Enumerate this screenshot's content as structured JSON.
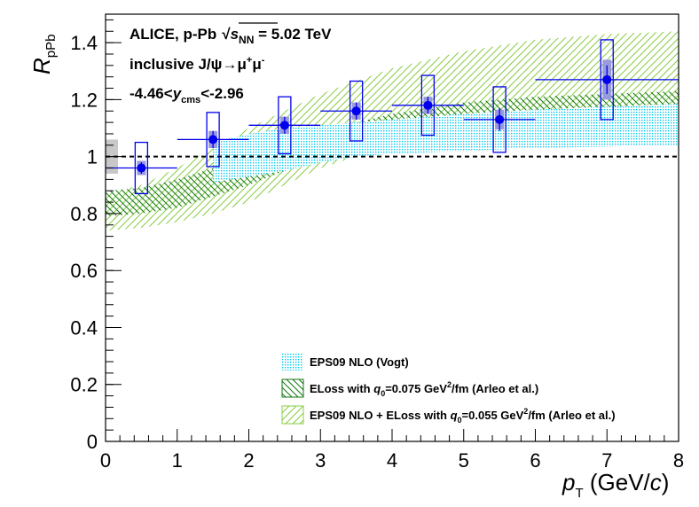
{
  "chart_data": {
    "type": "scatter",
    "title": "",
    "xlabel": "p_T (GeV/c)",
    "ylabel": "R_pPb",
    "xlim": [
      0,
      8
    ],
    "ylim": [
      0,
      1.5
    ],
    "x_ticks": [
      0,
      1,
      2,
      3,
      4,
      5,
      6,
      7,
      8
    ],
    "y_ticks": [
      0,
      0.2,
      0.4,
      0.6,
      0.8,
      1,
      1.2,
      1.4
    ],
    "x_tick_labels": [
      "0",
      "1",
      "2",
      "3",
      "4",
      "5",
      "6",
      "7",
      "8"
    ],
    "y_tick_labels": [
      "0",
      "0.2",
      "0.4",
      "0.6",
      "0.8",
      "1",
      "1.2",
      "1.4"
    ],
    "reference_line": 1.0,
    "global_uncertainty": {
      "low": 0.94,
      "high": 1.06
    },
    "axis_labels": {
      "x_main": "p",
      "x_sub": "T",
      "x_unit_open": " (GeV/",
      "x_unit_c": "c",
      "x_unit_close": ")",
      "y_main": "R",
      "y_sub": "pPb"
    },
    "annotations": {
      "line1_prefix": "ALICE, p-Pb",
      "line1_s": "s",
      "line1_s_sub": "NN",
      "line1_suffix": " = 5.02 TeV",
      "line2_prefix": "inclusive J/ψ→μ",
      "line2_mu_plus": "+",
      "line2_mu2": "μ",
      "line2_mu_minus": "-",
      "line3_prefix": "-4.46<",
      "line3_y": "y",
      "line3_sub": "cms",
      "line3_suffix": "<-2.96"
    },
    "series": [
      {
        "name": "ALICE data",
        "x": [
          0.5,
          1.5,
          2.5,
          3.5,
          4.5,
          5.5,
          7.0
        ],
        "x_low": [
          0,
          1,
          2,
          3,
          4,
          5,
          6
        ],
        "x_high": [
          1,
          2,
          3,
          4,
          5,
          6,
          8
        ],
        "y": [
          0.96,
          1.06,
          1.11,
          1.16,
          1.18,
          1.13,
          1.27
        ],
        "stat_err": [
          0.02,
          0.03,
          0.03,
          0.03,
          0.03,
          0.04,
          0.05
        ],
        "syst_uncorr": [
          0.09,
          0.095,
          0.1,
          0.105,
          0.105,
          0.115,
          0.14
        ],
        "syst_partcorr": [
          0.025,
          0.03,
          0.03,
          0.03,
          0.03,
          0.035,
          0.07
        ],
        "color": "#0000ee"
      }
    ],
    "bands": [
      {
        "name": "EPS09 NLO (Vogt)",
        "label_prefix": "EPS09 NLO (Vogt)",
        "x": [
          1.5,
          2,
          2.5,
          3,
          3.5,
          4,
          5,
          6,
          7,
          8
        ],
        "low": [
          0.91,
          0.93,
          0.95,
          0.98,
          1.0,
          1.01,
          1.02,
          1.03,
          1.035,
          1.04
        ],
        "high": [
          1.05,
          1.08,
          1.1,
          1.11,
          1.12,
          1.13,
          1.15,
          1.165,
          1.175,
          1.185
        ],
        "color": "#00c8ee"
      },
      {
        "name": "ELoss with q0=0.075 GeV2/fm (Arleo et al.)",
        "label_prefix": "ELoss with ",
        "label_q": "q",
        "label_q_sub": "0",
        "label_value": "=0.075 GeV",
        "label_sup": "2",
        "label_suffix": "/fm (Arleo et al.)",
        "x": [
          0,
          0.5,
          1,
          1.5,
          2,
          2.5,
          3,
          4,
          5,
          6,
          7,
          8
        ],
        "low": [
          0.79,
          0.8,
          0.82,
          0.86,
          0.9,
          0.95,
          0.99,
          1.05,
          1.09,
          1.12,
          1.14,
          1.15
        ],
        "high": [
          0.88,
          0.89,
          0.92,
          0.96,
          1.01,
          1.05,
          1.09,
          1.15,
          1.19,
          1.21,
          1.22,
          1.23
        ],
        "color": "#117711"
      },
      {
        "name": "EPS09 NLO + ELoss with q0=0.055 GeV2/fm (Arleo et al.)",
        "label_prefix": "EPS09 NLO + ELoss with ",
        "label_q": "q",
        "label_q_sub": "0",
        "label_value": "=0.055 GeV",
        "label_sup": "2",
        "label_suffix": "/fm (Arleo et al.)",
        "x": [
          0,
          0.5,
          1,
          1.5,
          2,
          2.5,
          3,
          4,
          5,
          6,
          7,
          8
        ],
        "low": [
          0.74,
          0.75,
          0.77,
          0.8,
          0.84,
          0.9,
          0.96,
          1.04,
          1.09,
          1.12,
          1.14,
          1.16
        ],
        "high": [
          0.87,
          0.9,
          0.96,
          1.03,
          1.1,
          1.16,
          1.22,
          1.31,
          1.37,
          1.41,
          1.43,
          1.44
        ],
        "color": "#88cc44"
      }
    ]
  }
}
